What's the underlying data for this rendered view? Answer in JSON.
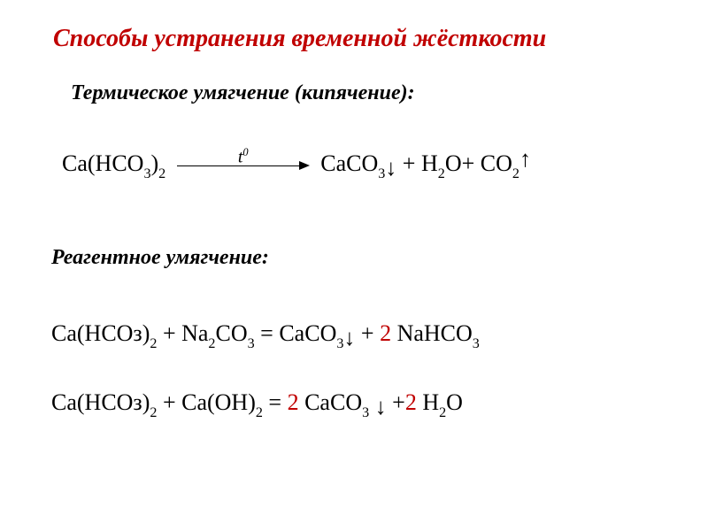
{
  "title": "Способы устранения временной жёсткости",
  "subheading1": "Термическое  умягчение (кипячение):",
  "subheading2": "Реагентное умягчение:",
  "colors": {
    "accent": "#c00000",
    "text": "#000000",
    "background": "#ffffff"
  },
  "typography": {
    "title_fontsize_pt": 21,
    "subheading_fontsize_pt": 18,
    "equation_fontsize_pt": 20,
    "font_family": "Times New Roman"
  },
  "equations": {
    "eq1": {
      "left": {
        "species": "Ca(HCO",
        "sub1": "3",
        "close": ")",
        "sub2": "2"
      },
      "arrow_label_t": "t",
      "arrow_label_sup": "0",
      "r1": {
        "species": "CaCO",
        "sub": "3",
        "marker": "↓"
      },
      "plus1": " + H",
      "r2_sub": "2",
      "r2_tail": "O+ CO",
      "r3_sub": "2",
      "r3_marker": "↑"
    },
    "eq2": {
      "l1": "Ca(HCOз)",
      "l1_sub": "2",
      "plus_l": " + Na",
      "l2_sub": "2",
      "l2_tail": "CO",
      "l2_sub2": "3",
      "eq": " =  ",
      "r1": "CaCO",
      "r1_sub": "3",
      "r1_marker": "↓",
      "plus_r": " +  ",
      "coef": "2",
      "gap": "  ",
      "r2": "NaHCO",
      "r2_sub": "3"
    },
    "eq3": {
      "l1": "Ca(HCOз)",
      "l1_sub": "2",
      "plus_l": " + Ca(OH)",
      "l2_sub": "2",
      "eq": " = ",
      "coef1": "2",
      "r1": " CaCO",
      "r1_sub": "3",
      "r1_marker": " ↓",
      "plus_r": " +",
      "coef2": "2",
      "r2": " H",
      "r2_sub": "2",
      "r2_tail": "O"
    }
  }
}
